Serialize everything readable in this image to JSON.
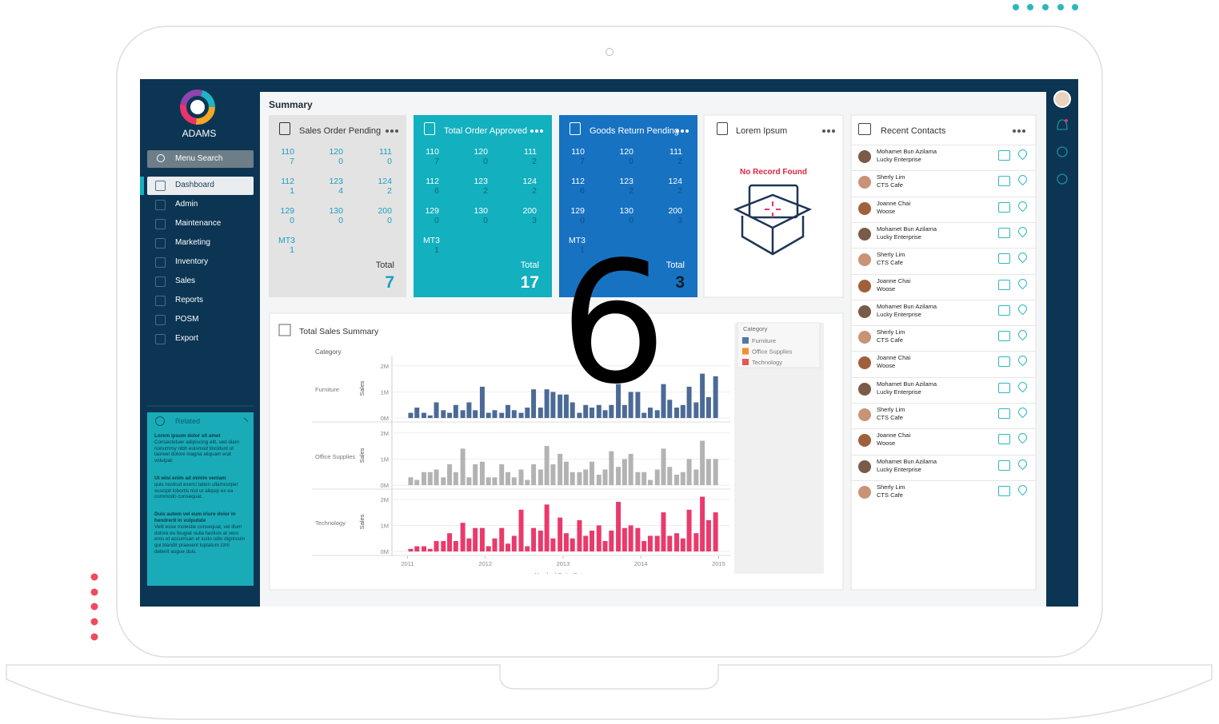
{
  "app": {
    "brand": "ADAMS",
    "search": "Menu Search",
    "menu": [
      "Dashboard",
      "Admin",
      "Maintenance",
      "Marketing",
      "Inventory",
      "Sales",
      "Reports",
      "POSM",
      "Export"
    ],
    "related": {
      "title": "Related",
      "paragraphs": [
        {
          "heading": "Lorem ipsum dolor sit amet",
          "text": "Consectetuer adipiscing elit, sed diam nonummy nibh euismod tincidunt ut laoreet dolore magna aliquam erat volutpat."
        },
        {
          "heading": "Ut wisi enim ad minim veniam",
          "text": "quis nostrud exerci tation ullamcorper suscipit lobortis nisl ut aliquip ex ea commodo consequat."
        },
        {
          "heading": "Duis autem vel eum iriure dolor in hendrerit in vulputate",
          "text": "Velit esse molestie consequat, vel illum dolore eu feugiat nulla facilisis at vero eros et accumsan et iusto odio dignissim qui blandit praesent luptatum zzril delenit augue duis."
        }
      ]
    }
  },
  "summary": {
    "title": "Summary",
    "cards": [
      {
        "title": "Sales Order Pending",
        "items": [
          {
            "code": "110",
            "count": 7
          },
          {
            "code": "120",
            "count": 0
          },
          {
            "code": "111",
            "count": 0
          },
          {
            "code": "112",
            "count": 1
          },
          {
            "code": "123",
            "count": 4
          },
          {
            "code": "124",
            "count": 2
          },
          {
            "code": "129",
            "count": 0
          },
          {
            "code": "130",
            "count": 0
          },
          {
            "code": "200",
            "count": 0
          },
          {
            "code": "MT3",
            "count": 1
          }
        ],
        "total_label": "Total",
        "total": 7
      },
      {
        "title": "Total Order Approved",
        "items": [
          {
            "code": "110",
            "count": 7
          },
          {
            "code": "120",
            "count": 0
          },
          {
            "code": "111",
            "count": 2
          },
          {
            "code": "112",
            "count": 6
          },
          {
            "code": "123",
            "count": 2
          },
          {
            "code": "124",
            "count": 2
          },
          {
            "code": "129",
            "count": 0
          },
          {
            "code": "130",
            "count": 0
          },
          {
            "code": "200",
            "count": 3
          },
          {
            "code": "MT3",
            "count": 1
          }
        ],
        "total_label": "Total",
        "total": 17
      },
      {
        "title": "Goods Return Pending",
        "items": [
          {
            "code": "110",
            "count": 7
          },
          {
            "code": "120",
            "count": 0
          },
          {
            "code": "111",
            "count": 2
          },
          {
            "code": "112",
            "count": 6
          },
          {
            "code": "123",
            "count": 2
          },
          {
            "code": "124",
            "count": 2
          },
          {
            "code": "129",
            "count": 0
          },
          {
            "code": "130",
            "count": 0
          },
          {
            "code": "200",
            "count": 3
          },
          {
            "code": "MT3",
            "count": 1
          }
        ],
        "total_label": "Total",
        "total": 3
      }
    ]
  },
  "lorem": {
    "title": "Lorem Ipsum",
    "message": "No Record Found"
  },
  "chart_data": {
    "type": "bar",
    "title": "Total Sales Summary",
    "facet_label": "Category",
    "ylabel": "Sales",
    "xlabel": "Month of Order Date",
    "legend_title": "Category",
    "x": [
      2011.0,
      2011.08,
      2011.17,
      2011.25,
      2011.33,
      2011.42,
      2011.5,
      2011.58,
      2011.67,
      2011.75,
      2011.83,
      2011.92,
      2012.0,
      2012.08,
      2012.17,
      2012.25,
      2012.33,
      2012.42,
      2012.5,
      2012.58,
      2012.67,
      2012.75,
      2012.83,
      2012.92,
      2013.0,
      2013.08,
      2013.17,
      2013.25,
      2013.33,
      2013.42,
      2013.5,
      2013.58,
      2013.67,
      2013.75,
      2013.83,
      2013.92,
      2014.0,
      2014.08,
      2014.17,
      2014.25,
      2014.33,
      2014.42,
      2014.5,
      2014.58,
      2014.67,
      2014.75,
      2014.83,
      2014.92
    ],
    "xlim": [
      2010.8,
      2015.15
    ],
    "xticks": [
      2011,
      2012,
      2013,
      2014,
      2015
    ],
    "ylim": [
      -0.15,
      2.3
    ],
    "yticks": [
      {
        "value": 0,
        "label": "0M"
      },
      {
        "value": 1,
        "label": "1M"
      },
      {
        "value": 2,
        "label": "2M"
      }
    ],
    "series": [
      {
        "name": "Furniture",
        "color": "#4b6a96",
        "legend_color": "#4e79a7",
        "values": [
          0.2,
          0.4,
          0.2,
          0.1,
          0.6,
          0.3,
          0.2,
          0.5,
          0.3,
          0.6,
          0.3,
          1.2,
          0.2,
          0.3,
          0.2,
          0.5,
          0.3,
          0.2,
          0.4,
          1.1,
          0.4,
          1.1,
          1.0,
          0.9,
          0.9,
          0.6,
          0.2,
          0.5,
          0.4,
          0.5,
          0.3,
          0.5,
          1.3,
          0.5,
          1.0,
          1.0,
          0.2,
          0.4,
          0.3,
          1.3,
          0.7,
          0.4,
          0.5,
          1.2,
          0.6,
          1.7,
          0.8,
          1.6
        ]
      },
      {
        "name": "Office Supplies",
        "color": "#b3b3b3",
        "legend_color": "#f28e2b",
        "values": [
          0.3,
          0.2,
          0.5,
          0.5,
          0.6,
          0.3,
          0.8,
          0.5,
          1.4,
          0.3,
          0.8,
          0.9,
          0.3,
          0.3,
          0.8,
          0.5,
          0.3,
          0.6,
          0.2,
          0.8,
          0.6,
          1.5,
          0.8,
          1.2,
          0.9,
          0.5,
          0.5,
          0.6,
          0.9,
          0.4,
          0.6,
          1.3,
          0.7,
          1.0,
          1.2,
          0.5,
          0.5,
          0.2,
          0.6,
          1.4,
          0.7,
          0.4,
          0.5,
          1.0,
          0.6,
          1.7,
          1.0,
          1.0
        ]
      },
      {
        "name": "Technology",
        "color": "#ea3a6c",
        "legend_color": "#e15759",
        "values": [
          0.1,
          0.2,
          0.2,
          0.1,
          0.4,
          0.4,
          0.7,
          0.4,
          1.1,
          0.5,
          0.9,
          0.9,
          0.2,
          0.5,
          0.9,
          0.3,
          0.6,
          1.6,
          0.2,
          0.9,
          0.8,
          1.8,
          0.5,
          1.3,
          0.7,
          0.5,
          1.2,
          0.6,
          0.8,
          1.0,
          0.4,
          0.8,
          1.9,
          0.9,
          1.0,
          0.9,
          0.4,
          0.6,
          0.6,
          1.5,
          0.6,
          0.7,
          0.5,
          1.6,
          0.7,
          2.1,
          1.2,
          1.5
        ]
      }
    ]
  },
  "contacts": {
    "title": "Recent Contacts",
    "items": [
      {
        "name": "Mohamet Bun Azilama",
        "company": "Lucky Enterprise"
      },
      {
        "name": "Sherly Lim",
        "company": "CTS Cafe"
      },
      {
        "name": "Joanne Chai",
        "company": "Woose"
      },
      {
        "name": "Mohamet Bun Azilama",
        "company": "Lucky Enterprise"
      },
      {
        "name": "Sherly Lim",
        "company": "CTS Cafe"
      },
      {
        "name": "Joanne Chai",
        "company": "Woose"
      },
      {
        "name": "Mohamet Bun Azilama",
        "company": "Lucky Enterprise"
      },
      {
        "name": "Sherly Lim",
        "company": "CTS Cafe"
      },
      {
        "name": "Joanne Chai",
        "company": "Woose"
      },
      {
        "name": "Mohamet Bun Azilama",
        "company": "Lucky Enterprise"
      },
      {
        "name": "Sherly Lim",
        "company": "CTS Cafe"
      },
      {
        "name": "Joanne Chai",
        "company": "Woose"
      },
      {
        "name": "Mohamet Bun Azilama",
        "company": "Lucky Enterprise"
      },
      {
        "name": "Sherly Lim",
        "company": "CTS Cafe"
      }
    ]
  },
  "overlay": "6"
}
